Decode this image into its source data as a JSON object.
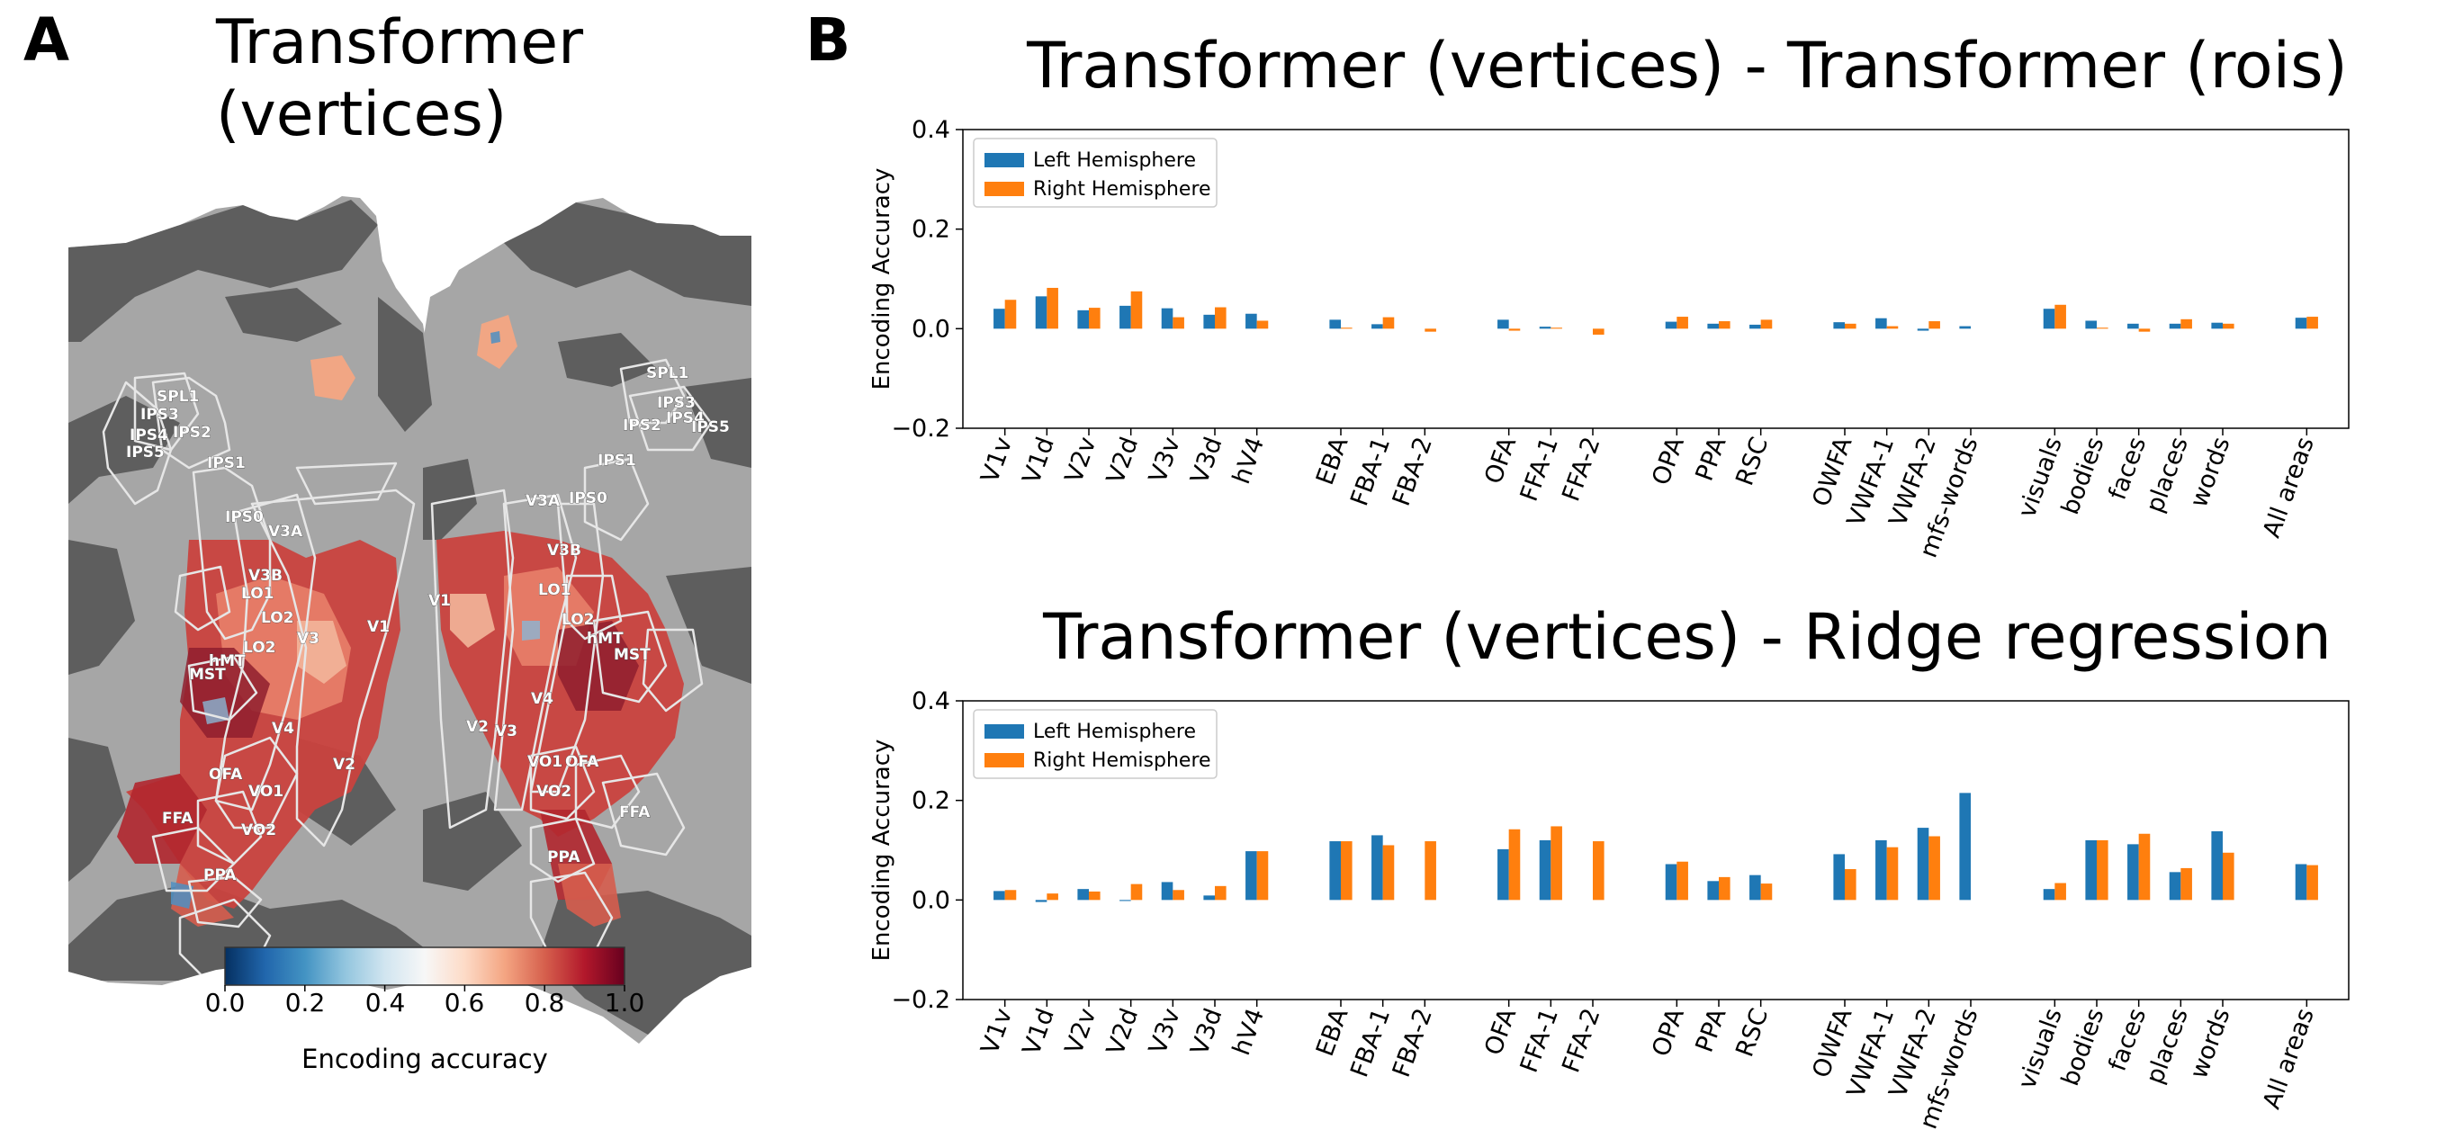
{
  "panels": {
    "a_letter": "A",
    "b_letter": "B"
  },
  "map": {
    "title_line1": "Transformer",
    "title_line2": "(vertices)",
    "left_labels": [
      "SPL1",
      "IPS3",
      "IPS2",
      "IPS4",
      "IPS5",
      "IPS1",
      "IPS0",
      "V3A",
      "V3B",
      "LO1",
      "LO2",
      "V1",
      "V3",
      "hMT",
      "MST",
      "LO2",
      "V4",
      "OFA",
      "VO1",
      "V2",
      "FFA",
      "VO2",
      "PPA"
    ],
    "right_labels": [
      "SPL1",
      "IPS3",
      "IPS2",
      "IPS4",
      "IPS5",
      "IPS1",
      "V3A",
      "IPS0",
      "V3B",
      "LO1",
      "V1",
      "LO2",
      "hMT",
      "MST",
      "V4",
      "V2",
      "V3",
      "VO1",
      "OFA",
      "VO2",
      "FFA",
      "PPA"
    ],
    "colorbar": {
      "ticks": [
        "0.0",
        "0.2",
        "0.4",
        "0.6",
        "0.8",
        "1.0"
      ],
      "label": "Encoding accuracy"
    },
    "colors": {
      "background": "#ffffff",
      "sulci": "#5e5e5e",
      "gyri": "#a6a6a6",
      "roi_outline": "#e6e6e6",
      "low": "#053061",
      "mid": "#f7f7f7",
      "high": "#67001f"
    }
  },
  "chart_data": [
    {
      "type": "bar",
      "title": "Transformer (vertices) - Transformer (rois)",
      "ylabel": "Encoding Accuracy",
      "xlabel": "",
      "ylim": [
        -0.2,
        0.4
      ],
      "yticks": [
        "−0.2",
        "0.0",
        "0.2",
        "0.4"
      ],
      "legend_position": "upper-left",
      "grid": false,
      "categories": [
        "V1v",
        "V1d",
        "V2v",
        "V2d",
        "V3v",
        "V3d",
        "hV4",
        "EBA",
        "FBA-1",
        "FBA-2",
        "OFA",
        "FFA-1",
        "FFA-2",
        "OPA",
        "PPA",
        "RSC",
        "OWFA",
        "VWFA-1",
        "VWFA-2",
        "mfs-words",
        "visuals",
        "bodies",
        "faces",
        "places",
        "words",
        "All areas"
      ],
      "groups": [
        7,
        3,
        3,
        3,
        4,
        5,
        1
      ],
      "series": [
        {
          "name": "Left Hemisphere",
          "color": "#1f77b4",
          "values": [
            0.04,
            0.065,
            0.037,
            0.046,
            0.041,
            0.028,
            0.03,
            0.018,
            0.009,
            0.0,
            0.018,
            0.004,
            0.0,
            0.014,
            0.01,
            0.008,
            0.013,
            0.021,
            -0.004,
            0.005,
            0.04,
            0.016,
            0.01,
            0.01,
            0.012,
            0.022
          ]
        },
        {
          "name": "Right Hemisphere",
          "color": "#ff7f0e",
          "values": [
            0.058,
            0.082,
            0.042,
            0.075,
            0.023,
            0.043,
            0.016,
            0.002,
            0.023,
            -0.006,
            -0.004,
            0.002,
            -0.012,
            0.024,
            0.015,
            0.018,
            0.01,
            0.005,
            0.015,
            0.0,
            0.048,
            0.002,
            -0.006,
            0.019,
            0.01,
            0.024
          ]
        }
      ]
    },
    {
      "type": "bar",
      "title": "Transformer (vertices) - Ridge regression",
      "ylabel": "Encoding Accuracy",
      "xlabel": "",
      "ylim": [
        -0.2,
        0.4
      ],
      "yticks": [
        "−0.2",
        "0.0",
        "0.2",
        "0.4"
      ],
      "legend_position": "upper-left",
      "grid": false,
      "categories": [
        "V1v",
        "V1d",
        "V2v",
        "V2d",
        "V3v",
        "V3d",
        "hV4",
        "EBA",
        "FBA-1",
        "FBA-2",
        "OFA",
        "FFA-1",
        "FFA-2",
        "OPA",
        "PPA",
        "RSC",
        "OWFA",
        "VWFA-1",
        "VWFA-2",
        "mfs-words",
        "visuals",
        "bodies",
        "faces",
        "places",
        "words",
        "All areas"
      ],
      "groups": [
        7,
        3,
        3,
        3,
        4,
        5,
        1
      ],
      "series": [
        {
          "name": "Left Hemisphere",
          "color": "#1f77b4",
          "values": [
            0.018,
            -0.004,
            0.022,
            -0.002,
            0.036,
            0.009,
            0.098,
            0.118,
            0.13,
            0.0,
            0.102,
            0.12,
            0.0,
            0.072,
            0.038,
            0.05,
            0.092,
            0.12,
            0.145,
            0.215,
            0.022,
            0.12,
            0.112,
            0.056,
            0.138,
            0.072
          ]
        },
        {
          "name": "Right Hemisphere",
          "color": "#ff7f0e",
          "values": [
            0.02,
            0.013,
            0.017,
            0.032,
            0.02,
            0.028,
            0.098,
            0.118,
            0.11,
            0.118,
            0.142,
            0.148,
            0.118,
            0.077,
            0.046,
            0.033,
            0.062,
            0.106,
            0.128,
            0.0,
            0.034,
            0.12,
            0.133,
            0.064,
            0.095,
            0.07
          ]
        }
      ]
    }
  ]
}
